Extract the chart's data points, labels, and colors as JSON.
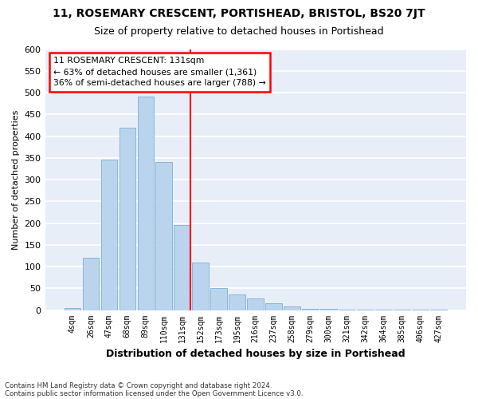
{
  "title": "11, ROSEMARY CRESCENT, PORTISHEAD, BRISTOL, BS20 7JT",
  "subtitle": "Size of property relative to detached houses in Portishead",
  "xlabel": "Distribution of detached houses by size in Portishead",
  "ylabel": "Number of detached properties",
  "bar_labels": [
    "4sqm",
    "26sqm",
    "47sqm",
    "68sqm",
    "89sqm",
    "110sqm",
    "131sqm",
    "152sqm",
    "173sqm",
    "195sqm",
    "216sqm",
    "237sqm",
    "258sqm",
    "279sqm",
    "300sqm",
    "321sqm",
    "342sqm",
    "364sqm",
    "385sqm",
    "406sqm",
    "427sqm"
  ],
  "bar_values": [
    5,
    120,
    345,
    420,
    490,
    340,
    195,
    110,
    50,
    35,
    27,
    16,
    9,
    3,
    3,
    1,
    1,
    1,
    1,
    1,
    1
  ],
  "property_index": 6,
  "annotation_title": "11 ROSEMARY CRESCENT: 131sqm",
  "annotation_line1": "← 63% of detached houses are smaller (1,361)",
  "annotation_line2": "36% of semi-detached houses are larger (788) →",
  "bar_color": "#bad4ee",
  "bar_edge_color": "#7aafd4",
  "vline_color": "red",
  "background_color": "#e8eef8",
  "grid_color": "white",
  "footnote1": "Contains HM Land Registry data © Crown copyright and database right 2024.",
  "footnote2": "Contains public sector information licensed under the Open Government Licence v3.0.",
  "ylim": [
    0,
    600
  ],
  "yticks": [
    0,
    50,
    100,
    150,
    200,
    250,
    300,
    350,
    400,
    450,
    500,
    550,
    600
  ]
}
